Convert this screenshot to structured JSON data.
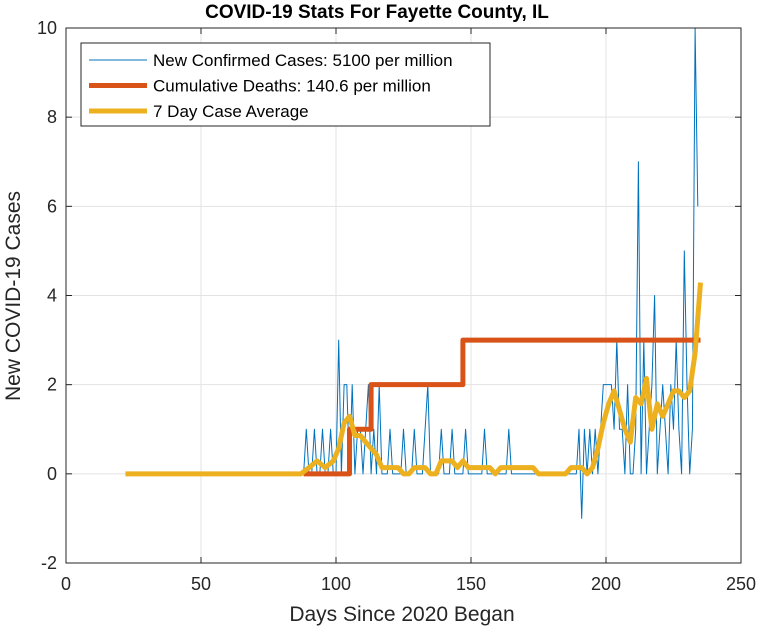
{
  "chart_data": {
    "type": "line",
    "title": "COVID-19 Stats For Fayette County, IL",
    "xlabel": "Days Since 2020 Began",
    "ylabel": "New COVID-19 Cases",
    "xlim": [
      0,
      250
    ],
    "ylim": [
      -2,
      10
    ],
    "xticks": [
      0,
      50,
      100,
      150,
      200,
      250
    ],
    "yticks": [
      -2,
      0,
      2,
      4,
      6,
      8,
      10
    ],
    "grid": true,
    "legend_position": "top-left",
    "series": [
      {
        "name": "New Confirmed Cases: 5100 per million",
        "color": "#0072BD",
        "width": 1,
        "x": [
          88,
          89,
          90,
          91,
          92,
          93,
          94,
          95,
          96,
          97,
          98,
          99,
          100,
          101,
          102,
          103,
          104,
          105,
          106,
          107,
          108,
          109,
          110,
          111,
          112,
          113,
          114,
          115,
          116,
          117,
          118,
          119,
          120,
          121,
          122,
          123,
          124,
          125,
          126,
          127,
          128,
          129,
          130,
          131,
          132,
          133,
          134,
          135,
          136,
          137,
          138,
          139,
          140,
          141,
          142,
          143,
          144,
          145,
          146,
          147,
          148,
          149,
          150,
          151,
          152,
          153,
          154,
          155,
          156,
          157,
          158,
          159,
          160,
          161,
          162,
          163,
          164,
          165,
          166,
          167,
          168,
          169,
          170,
          171,
          172,
          173,
          174,
          175,
          176,
          177,
          178,
          179,
          180,
          181,
          182,
          183,
          184,
          185,
          186,
          187,
          188,
          189,
          190,
          191,
          192,
          193,
          194,
          195,
          196,
          197,
          198,
          199,
          200,
          201,
          202,
          203,
          204,
          205,
          206,
          207,
          208,
          209,
          210,
          211,
          212,
          213,
          214,
          215,
          216,
          217,
          218,
          219,
          220,
          221,
          222,
          223,
          224,
          225,
          226,
          227,
          228,
          229,
          230,
          231,
          232,
          233,
          234
        ],
        "y": [
          0,
          1,
          0,
          0,
          1,
          0,
          0,
          1,
          0,
          0,
          1,
          0,
          0,
          3,
          0,
          2,
          2,
          0,
          2,
          0,
          1,
          1,
          0,
          1,
          2,
          0,
          1,
          0,
          2,
          0,
          0,
          0,
          1,
          0,
          0,
          0,
          0,
          1,
          0,
          0,
          0,
          1,
          0,
          0,
          0,
          1,
          2,
          0,
          0,
          0,
          0,
          1,
          0,
          0,
          0,
          1,
          0,
          0,
          0,
          0,
          1,
          0,
          0,
          0,
          0,
          0,
          0,
          1,
          0,
          0,
          0,
          0,
          0,
          0,
          0,
          0,
          1,
          0,
          0,
          0,
          0,
          0,
          0,
          0,
          0,
          0,
          0,
          0,
          0,
          0,
          0,
          0,
          0,
          0,
          0,
          0,
          0,
          0,
          0,
          0,
          0,
          0,
          1,
          -1,
          1,
          0,
          1,
          0,
          1,
          0,
          1,
          2,
          2,
          2,
          2,
          1,
          3,
          1,
          1,
          0,
          2,
          0,
          0,
          1,
          7,
          0,
          3,
          0,
          1,
          2,
          4,
          0,
          1,
          2,
          1,
          0,
          2,
          1,
          3,
          1,
          0,
          5,
          2,
          0,
          1,
          10,
          6
        ]
      },
      {
        "name": "Cumulative Deaths: 140.6 per million",
        "color": "#D95319",
        "width": 5,
        "x": [
          88,
          105,
          105,
          113,
          113,
          147,
          147,
          235
        ],
        "y": [
          0,
          0,
          1,
          1,
          2,
          2,
          3,
          3
        ]
      },
      {
        "name": "7 Day Case Average",
        "color": "#EDB120",
        "width": 5,
        "x": [
          22,
          87,
          90,
          93,
          96,
          99,
          101,
          103,
          105,
          107,
          109,
          111,
          113,
          115,
          117,
          119,
          121,
          123,
          125,
          127,
          129,
          131,
          133,
          135,
          137,
          139,
          141,
          143,
          145,
          147,
          149,
          151,
          153,
          155,
          157,
          159,
          161,
          163,
          165,
          167,
          169,
          171,
          173,
          175,
          177,
          179,
          181,
          183,
          185,
          187,
          189,
          191,
          193,
          195,
          197,
          199,
          201,
          203,
          205,
          207,
          209,
          211,
          213,
          215,
          217,
          219,
          221,
          223,
          225,
          227,
          229,
          231,
          233,
          235
        ],
        "y": [
          0,
          0,
          0.14,
          0.29,
          0.14,
          0.29,
          0.57,
          1.14,
          1.29,
          0.86,
          0.86,
          0.71,
          0.57,
          0.43,
          0.14,
          0.14,
          0.14,
          0.14,
          0,
          0,
          0.14,
          0.14,
          0.14,
          0,
          0,
          0.29,
          0.29,
          0.29,
          0.14,
          0.29,
          0.14,
          0.14,
          0.14,
          0.14,
          0.14,
          0,
          0.14,
          0.14,
          0.14,
          0.14,
          0.14,
          0.14,
          0.14,
          0,
          0,
          0,
          0,
          0,
          0,
          0.14,
          0.14,
          0.14,
          0,
          0.14,
          0.57,
          1.14,
          1.57,
          1.86,
          1.43,
          1,
          0.71,
          1.71,
          1.57,
          2.14,
          1,
          1.57,
          1.29,
          1.57,
          1.86,
          1.86,
          1.71,
          1.86,
          2.71,
          4.29
        ]
      }
    ]
  }
}
